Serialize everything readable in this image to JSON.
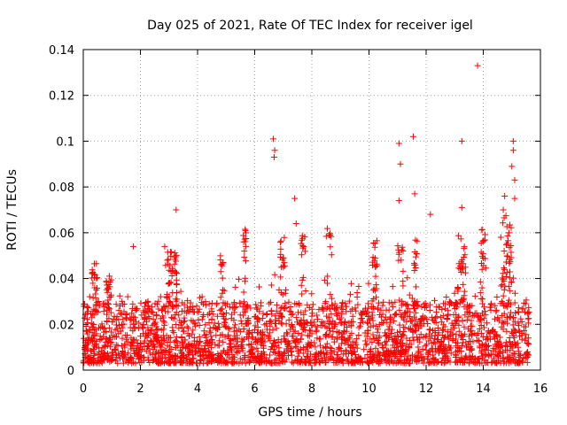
{
  "chart_data": {
    "type": "scatter",
    "title": "Day 025 of 2021, Rate Of TEC Index for receiver igel",
    "xlabel": "GPS time / hours",
    "ylabel": "ROTI / TECUs",
    "xlim": [
      0,
      16
    ],
    "ylim": [
      0,
      0.14
    ],
    "xticks": [
      0,
      2,
      4,
      6,
      8,
      10,
      12,
      14,
      16
    ],
    "yticks": [
      0,
      0.02,
      0.04,
      0.06,
      0.08,
      0.1,
      0.12,
      0.14
    ],
    "xtick_labels": [
      "0",
      "2",
      "4",
      "6",
      "8",
      "10",
      "12",
      "14",
      "16"
    ],
    "ytick_labels": [
      "0",
      "0.02",
      "0.04",
      "0.06",
      "0.08",
      "0.1",
      "0.12",
      "0.14"
    ],
    "grid": true,
    "marker": "plus",
    "color": "#ff0000",
    "x_extent": [
      0,
      15.6
    ],
    "notable_points": [
      {
        "x": 1.75,
        "y": 0.054
      },
      {
        "x": 2.85,
        "y": 0.054
      },
      {
        "x": 3.25,
        "y": 0.07
      },
      {
        "x": 6.65,
        "y": 0.101
      },
      {
        "x": 6.7,
        "y": 0.096
      },
      {
        "x": 6.68,
        "y": 0.093
      },
      {
        "x": 7.4,
        "y": 0.075
      },
      {
        "x": 7.45,
        "y": 0.064
      },
      {
        "x": 11.05,
        "y": 0.099
      },
      {
        "x": 11.1,
        "y": 0.09
      },
      {
        "x": 11.05,
        "y": 0.074
      },
      {
        "x": 11.55,
        "y": 0.102
      },
      {
        "x": 11.6,
        "y": 0.077
      },
      {
        "x": 12.15,
        "y": 0.068
      },
      {
        "x": 13.25,
        "y": 0.1
      },
      {
        "x": 13.25,
        "y": 0.071
      },
      {
        "x": 13.8,
        "y": 0.133
      },
      {
        "x": 15.05,
        "y": 0.1
      },
      {
        "x": 15.05,
        "y": 0.096
      },
      {
        "x": 15.0,
        "y": 0.089
      },
      {
        "x": 15.1,
        "y": 0.083
      },
      {
        "x": 15.1,
        "y": 0.075
      },
      {
        "x": 14.75,
        "y": 0.076
      },
      {
        "x": 14.7,
        "y": 0.07
      },
      {
        "x": 14.9,
        "y": 0.06
      }
    ],
    "clusters": [
      {
        "x_range": [
          0.3,
          0.5
        ],
        "y_range": [
          0.04,
          0.048
        ],
        "n": 12
      },
      {
        "x_range": [
          0.8,
          1.0
        ],
        "y_range": [
          0.035,
          0.042
        ],
        "n": 10
      },
      {
        "x_range": [
          2.85,
          3.3
        ],
        "y_range": [
          0.038,
          0.052
        ],
        "n": 30
      },
      {
        "x_range": [
          4.8,
          4.9
        ],
        "y_range": [
          0.04,
          0.05
        ],
        "n": 8
      },
      {
        "x_range": [
          5.6,
          5.7
        ],
        "y_range": [
          0.05,
          0.062
        ],
        "n": 10
      },
      {
        "x_range": [
          6.9,
          7.1
        ],
        "y_range": [
          0.045,
          0.058
        ],
        "n": 12
      },
      {
        "x_range": [
          7.6,
          7.8
        ],
        "y_range": [
          0.05,
          0.06
        ],
        "n": 10
      },
      {
        "x_range": [
          8.5,
          8.7
        ],
        "y_range": [
          0.045,
          0.062
        ],
        "n": 8
      },
      {
        "x_range": [
          10.1,
          10.3
        ],
        "y_range": [
          0.04,
          0.058
        ],
        "n": 14
      },
      {
        "x_range": [
          11.0,
          11.2
        ],
        "y_range": [
          0.042,
          0.055
        ],
        "n": 10
      },
      {
        "x_range": [
          11.5,
          11.7
        ],
        "y_range": [
          0.042,
          0.058
        ],
        "n": 10
      },
      {
        "x_range": [
          13.1,
          13.4
        ],
        "y_range": [
          0.04,
          0.06
        ],
        "n": 18
      },
      {
        "x_range": [
          13.9,
          14.1
        ],
        "y_range": [
          0.045,
          0.062
        ],
        "n": 14
      },
      {
        "x_range": [
          14.6,
          15.0
        ],
        "y_range": [
          0.04,
          0.068
        ],
        "n": 30
      }
    ],
    "baseline": {
      "description": "dense band of points",
      "y_typical_range": [
        0.003,
        0.03
      ]
    }
  }
}
